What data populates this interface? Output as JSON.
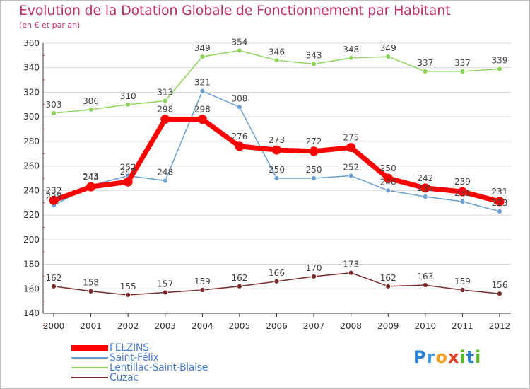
{
  "chart_data": {
    "type": "line",
    "title": "Evolution de la Dotation Globale de Fonctionnement par Habitant",
    "subtitle": "(en € et par an)",
    "categories": [
      "2000",
      "2001",
      "2002",
      "2003",
      "2004",
      "2005",
      "2006",
      "2007",
      "2008",
      "2009",
      "2010",
      "2011",
      "2012"
    ],
    "ylim": [
      140,
      360
    ],
    "yticks": [
      140,
      160,
      180,
      200,
      220,
      240,
      260,
      280,
      300,
      320,
      340,
      360
    ],
    "grid": "horizontal",
    "legend_position": "bottom-left",
    "series": [
      {
        "name": "FELZINS",
        "color": "#ff0000",
        "values": [
          232,
          243,
          247,
          298,
          298,
          276,
          273,
          272,
          275,
          250,
          242,
          239,
          231
        ],
        "labels": [
          "232",
          "243",
          "247",
          "298",
          "298",
          "276",
          "273",
          "272",
          "275",
          "250",
          "242",
          "239",
          "231"
        ]
      },
      {
        "name": "Saint-Félix",
        "color": "#6b9fd1",
        "values": [
          228,
          244,
          252,
          248,
          321,
          308,
          250,
          250,
          252,
          240,
          235,
          231,
          223
        ],
        "labels": [
          "228",
          "244",
          "252",
          "248",
          "321",
          "308",
          "250",
          "250",
          "252",
          "240",
          "235",
          "231",
          "223"
        ]
      },
      {
        "name": "Lentillac-Saint-Blaise",
        "color": "#8ed45a",
        "values": [
          303,
          306,
          310,
          313,
          349,
          354,
          346,
          343,
          348,
          349,
          337,
          337,
          339
        ],
        "labels": [
          "303",
          "306",
          "310",
          "313",
          "349",
          "354",
          "346",
          "343",
          "348",
          "349",
          "337",
          "337",
          "339"
        ]
      },
      {
        "name": "Cuzac",
        "color": "#7a2a2a",
        "values": [
          162,
          158,
          155,
          157,
          159,
          162,
          166,
          170,
          173,
          162,
          163,
          159,
          156
        ],
        "labels": [
          "162",
          "158",
          "155",
          "157",
          "159",
          "162",
          "166",
          "170",
          "173",
          "162",
          "163",
          "159",
          "156"
        ]
      }
    ]
  },
  "logo": {
    "letters": [
      "P",
      "r",
      "o",
      "x",
      "i",
      "t",
      "i"
    ],
    "colors": [
      "#2a7fd4",
      "#3a9be0",
      "#f0a020",
      "#e04020",
      "#5ab82a",
      "#2a7fd4",
      "#5ab82a"
    ]
  }
}
